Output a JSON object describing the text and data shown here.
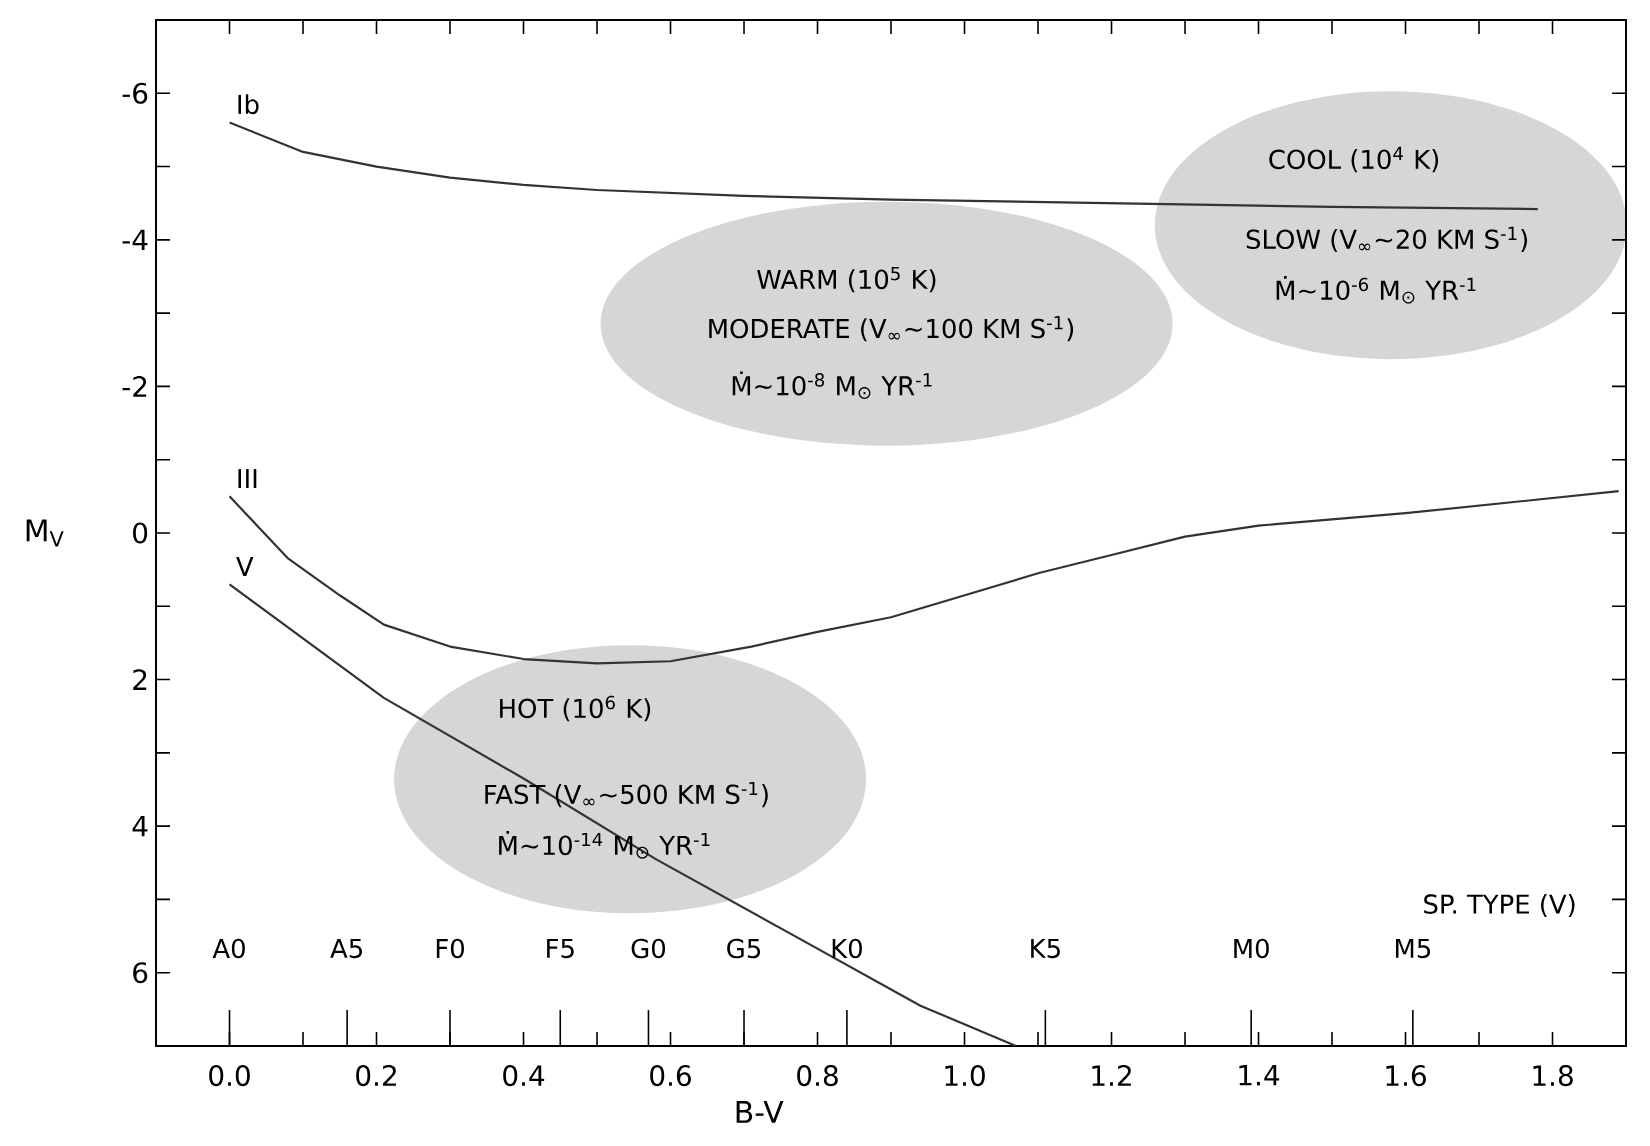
{
  "chart_data": {
    "type": "line",
    "xlabel": "B-V",
    "ylabel": "M$_{V}$",
    "marker": "none",
    "xlim": [
      -0.1,
      1.9
    ],
    "ylim": [
      7,
      -7
    ],
    "xticks": [
      {
        "value": 0.0,
        "label": "0.0"
      },
      {
        "value": 0.1,
        "label": null
      },
      0.2,
      {
        "value": 0.3,
        "label": null
      },
      0.4,
      {
        "value": 0.5,
        "label": null
      },
      0.6,
      {
        "value": 0.7,
        "label": null
      },
      0.8,
      {
        "value": 0.9,
        "label": null
      },
      {
        "value": 1.0,
        "label": "1.0"
      },
      {
        "value": 1.1,
        "label": null
      },
      1.2,
      {
        "value": 1.3,
        "label": null
      },
      1.4,
      {
        "value": 1.5,
        "label": null
      },
      1.6,
      {
        "value": 1.7,
        "label": null
      },
      1.8,
      {
        "value": 1.9,
        "label": null
      }
    ],
    "yticks": [
      -6,
      {
        "value": -5,
        "label": null
      },
      -4,
      {
        "value": -3,
        "label": null
      },
      -2,
      {
        "value": -1,
        "label": null
      },
      0,
      {
        "value": 1,
        "label": null
      },
      2,
      {
        "value": 3,
        "label": null
      },
      4,
      {
        "value": 5,
        "label": null
      },
      6
    ],
    "series": [
      {
        "name": "Ib",
        "color": "#333333",
        "x": [
          0,
          0.05,
          0.1,
          0.2,
          0.3,
          0.4,
          0.5,
          0.7,
          0.9,
          1.2,
          1.5,
          1.78
        ],
        "values": [
          -5.6,
          -5.4,
          -5.2,
          -5.0,
          -4.85,
          -4.75,
          -4.68,
          -4.6,
          -4.55,
          -4.5,
          -4.45,
          -4.42
        ]
      },
      {
        "name": "III",
        "color": "#333333",
        "x": [
          0,
          0.08,
          0.15,
          0.21,
          0.3,
          0.4,
          0.5,
          0.6,
          0.71,
          0.8,
          0.9,
          1.0,
          1.1,
          1.2,
          1.3,
          1.4,
          1.6,
          1.89
        ],
        "values": [
          -0.5,
          0.35,
          0.85,
          1.25,
          1.55,
          1.72,
          1.78,
          1.75,
          1.55,
          1.35,
          1.15,
          0.85,
          0.55,
          0.3,
          0.05,
          -0.1,
          -0.27,
          -0.57
        ]
      },
      {
        "name": "V",
        "color": "#333333",
        "x": [
          0,
          0.21,
          0.4,
          0.58,
          0.76,
          0.94,
          1.07
        ],
        "values": [
          0.7,
          2.25,
          3.35,
          4.45,
          5.45,
          6.45,
          7.0
        ]
      }
    ],
    "annotations": [
      "COOL (10$^{4}$ K)",
      "SLOW (V$_{∞}$~20 KM S$^{-1}$)",
      "Ṁ~10$^{-6}$ M$_{⊙}$ YR$^{-1}$",
      "WARM (10$^{5}$ K)",
      "MODERATE (V$_{∞}$~100 KM S$^{-1}$)",
      "Ṁ~10$^{-8}$ M$_{⊙}$ YR$^{-1}$",
      "HOT (10$^{6}$ K)",
      "FAST (V$_{∞}$~500 KM S$^{-1}$)",
      "Ṁ~10$^{-14}$ M$_{⊙}$ YR$^{-1}$",
      "A0",
      "A5",
      "F0",
      "F5",
      "G0",
      "G5",
      "K0",
      "K5",
      "M0",
      "M5",
      "SP. TYPE (V)"
    ]
  }
}
